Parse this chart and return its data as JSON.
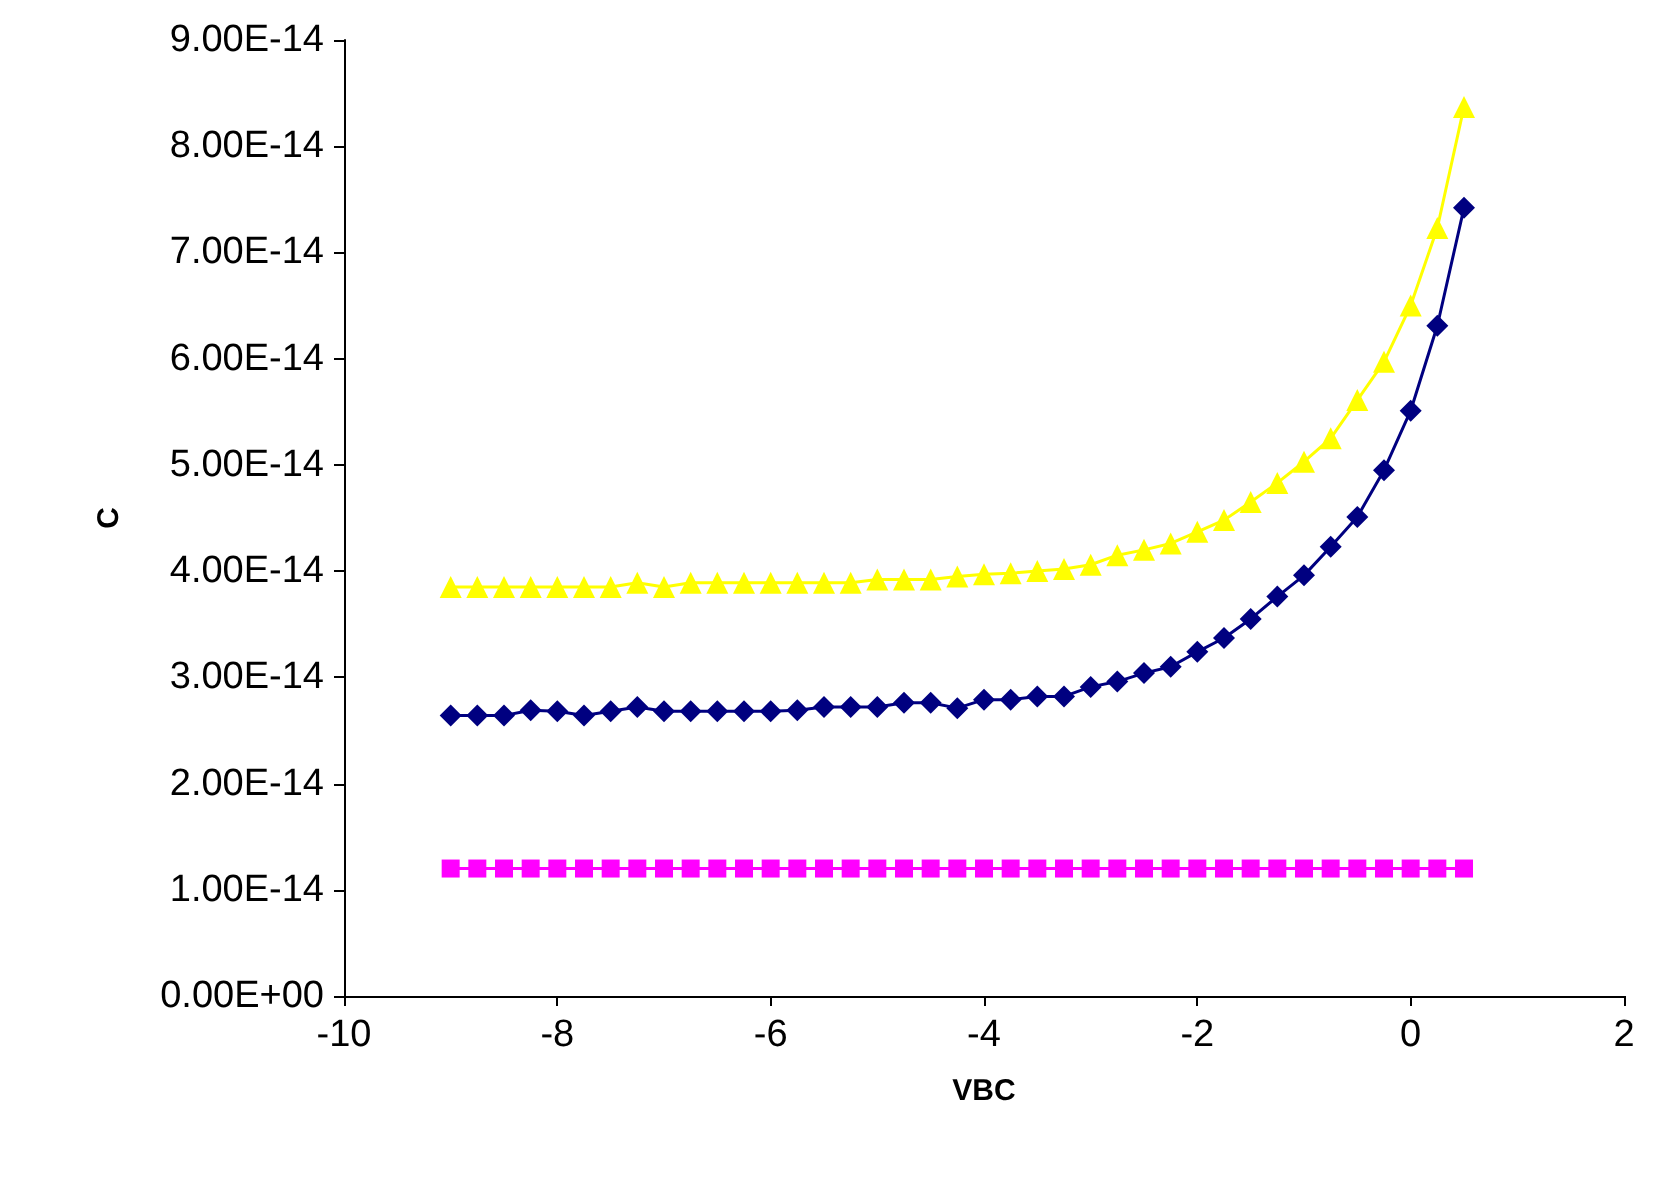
{
  "chart_data": {
    "type": "line",
    "xlabel": "VBC",
    "ylabel": "C",
    "xlim": [
      -10,
      2
    ],
    "xticks": [
      -10,
      -8,
      -6,
      -4,
      -2,
      0,
      2
    ],
    "ylim": [
      0,
      9e-14
    ],
    "yticks": [
      {
        "value": 0,
        "label": "0.00E+00"
      },
      {
        "value": 1e-14,
        "label": "1.00E-14"
      },
      {
        "value": 2e-14,
        "label": "2.00E-14"
      },
      {
        "value": 3e-14,
        "label": "3.00E-14"
      },
      {
        "value": 4e-14,
        "label": "4.00E-14"
      },
      {
        "value": 5e-14,
        "label": "5.00E-14"
      },
      {
        "value": 6e-14,
        "label": "6.00E-14"
      },
      {
        "value": 7e-14,
        "label": "7.00E-14"
      },
      {
        "value": 8e-14,
        "label": "8.00E-14"
      },
      {
        "value": 9e-14,
        "label": "9.00E-14"
      }
    ],
    "grid": false,
    "line_style": "solid",
    "x": [
      -9,
      -8.75,
      -8.5,
      -8.25,
      -8,
      -7.75,
      -7.5,
      -7.25,
      -7,
      -6.75,
      -6.5,
      -6.25,
      -6,
      -5.75,
      -5.5,
      -5.25,
      -5,
      -4.75,
      -4.5,
      -4.25,
      -4,
      -3.75,
      -3.5,
      -3.25,
      -3,
      -2.75,
      -2.5,
      -2.25,
      -2,
      -1.75,
      -1.5,
      -1.25,
      -1,
      -0.75,
      -0.5,
      -0.25,
      0,
      0.25,
      0.5
    ],
    "series": [
      {
        "color": "#000080",
        "marker": "diamond",
        "values": [
          2.64e-14,
          2.64e-14,
          2.64e-14,
          2.69e-14,
          2.68e-14,
          2.64e-14,
          2.68e-14,
          2.72e-14,
          2.68e-14,
          2.68e-14,
          2.68e-14,
          2.68e-14,
          2.68e-14,
          2.69e-14,
          2.72e-14,
          2.72e-14,
          2.72e-14,
          2.76e-14,
          2.76e-14,
          2.71e-14,
          2.79e-14,
          2.79e-14,
          2.82e-14,
          2.82e-14,
          2.91e-14,
          2.96e-14,
          3.04e-14,
          3.1e-14,
          3.24e-14,
          3.37e-14,
          3.55e-14,
          3.76e-14,
          3.96e-14,
          4.23e-14,
          4.51e-14,
          4.95e-14,
          5.51e-14,
          6.31e-14,
          7.42e-14
        ]
      },
      {
        "color": "#ff00ff",
        "marker": "square",
        "values": [
          1.2e-14,
          1.2e-14,
          1.2e-14,
          1.2e-14,
          1.2e-14,
          1.2e-14,
          1.2e-14,
          1.2e-14,
          1.2e-14,
          1.2e-14,
          1.2e-14,
          1.2e-14,
          1.2e-14,
          1.2e-14,
          1.2e-14,
          1.2e-14,
          1.2e-14,
          1.2e-14,
          1.2e-14,
          1.2e-14,
          1.2e-14,
          1.2e-14,
          1.2e-14,
          1.2e-14,
          1.2e-14,
          1.2e-14,
          1.2e-14,
          1.2e-14,
          1.2e-14,
          1.2e-14,
          1.2e-14,
          1.2e-14,
          1.2e-14,
          1.2e-14,
          1.2e-14,
          1.2e-14,
          1.2e-14,
          1.2e-14,
          1.2e-14
        ]
      },
      {
        "color": "#ffff00",
        "marker": "triangle",
        "values": [
          3.85e-14,
          3.85e-14,
          3.85e-14,
          3.85e-14,
          3.85e-14,
          3.85e-14,
          3.85e-14,
          3.89e-14,
          3.85e-14,
          3.89e-14,
          3.89e-14,
          3.89e-14,
          3.89e-14,
          3.89e-14,
          3.89e-14,
          3.89e-14,
          3.92e-14,
          3.92e-14,
          3.92e-14,
          3.95e-14,
          3.97e-14,
          3.98e-14,
          4e-14,
          4.02e-14,
          4.06e-14,
          4.15e-14,
          4.2e-14,
          4.26e-14,
          4.37e-14,
          4.48e-14,
          4.65e-14,
          4.83e-14,
          5.03e-14,
          5.25e-14,
          5.61e-14,
          5.97e-14,
          6.5e-14,
          7.23e-14,
          8.37e-14
        ]
      }
    ]
  }
}
